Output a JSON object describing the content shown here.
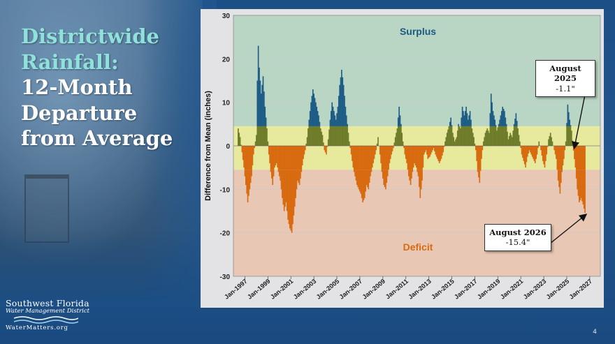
{
  "slide": {
    "title_line1": "Districtwide",
    "title_line2": "Rainfall:",
    "title_line3": "12-Month",
    "title_line4": "Departure",
    "title_line5": "from Average",
    "page_number": "4"
  },
  "logo": {
    "line1": "Southwest Florida",
    "line2": "Water Management District",
    "line3": "WaterMatters.org"
  },
  "callouts": [
    {
      "title": "August 2025",
      "value": "-1.1\""
    },
    {
      "title": "August 2026",
      "value": "-15.4\""
    }
  ],
  "colors": {
    "surplus_band": "#b9d5c4",
    "normal_band": "#e7ea9c",
    "deficit_band": "#e8c8b4",
    "surplus_bar": "#1d5d86",
    "normal_bar": "#6f7d2a",
    "deficit_bar": "#d86a10",
    "surplus_label": "#1c5a86",
    "deficit_label": "#d86a10"
  },
  "chart_data": {
    "type": "bar",
    "ylabel": "Difference from Mean (inches)",
    "ylim": [
      -30,
      30
    ],
    "yticks": [
      -30,
      -20,
      -10,
      0,
      10,
      20,
      30
    ],
    "normal_range": [
      -5.5,
      4.5
    ],
    "band_labels": {
      "surplus": "Surplus",
      "deficit": "Deficit"
    },
    "xlim": [
      "1996-01",
      "2027-12"
    ],
    "xticks": [
      "Jan-1997",
      "Jan-1999",
      "Jan-2001",
      "Jan-2003",
      "Jan-2005",
      "Jan-2007",
      "Jan-2009",
      "Jan-2011",
      "Jan-2013",
      "Jan-2015",
      "Jan-2017",
      "Jan-2019",
      "Jan-2021",
      "Jan-2023",
      "Jan-2025",
      "Jan-2027"
    ],
    "series": [
      {
        "points": [
          [
            "1996-06",
            4.0
          ],
          [
            "1996-08",
            2.0
          ],
          [
            "1996-10",
            -1.5
          ],
          [
            "1996-12",
            -5.0
          ],
          [
            "1997-02",
            -9.0
          ],
          [
            "1997-04",
            -13.0
          ],
          [
            "1997-06",
            -10.0
          ],
          [
            "1997-08",
            -7.0
          ],
          [
            "1997-10",
            -2.0
          ],
          [
            "1998-01",
            2.5
          ],
          [
            "1998-02",
            15.0
          ],
          [
            "1998-03",
            23.0
          ],
          [
            "1998-04",
            18.0
          ],
          [
            "1998-06",
            12.0
          ],
          [
            "1998-08",
            16.0
          ],
          [
            "1998-10",
            9.0
          ],
          [
            "1998-12",
            4.0
          ],
          [
            "1999-02",
            -2.0
          ],
          [
            "1999-04",
            -6.0
          ],
          [
            "1999-06",
            -9.0
          ],
          [
            "1999-08",
            -5.0
          ],
          [
            "1999-10",
            -4.0
          ],
          [
            "1999-12",
            -6.0
          ],
          [
            "2000-02",
            -8.0
          ],
          [
            "2000-04",
            -12.0
          ],
          [
            "2000-06",
            -15.0
          ],
          [
            "2000-08",
            -13.0
          ],
          [
            "2000-10",
            -17.0
          ],
          [
            "2000-12",
            -19.0
          ],
          [
            "2001-02",
            -20.0
          ],
          [
            "2001-04",
            -16.0
          ],
          [
            "2001-06",
            -12.0
          ],
          [
            "2001-08",
            -8.0
          ],
          [
            "2001-10",
            -9.0
          ],
          [
            "2001-12",
            -6.0
          ],
          [
            "2002-02",
            -3.0
          ],
          [
            "2002-04",
            -1.0
          ],
          [
            "2002-06",
            2.0
          ],
          [
            "2002-08",
            6.0
          ],
          [
            "2002-10",
            10.0
          ],
          [
            "2002-12",
            13.0
          ],
          [
            "2003-02",
            11.0
          ],
          [
            "2003-04",
            9.0
          ],
          [
            "2003-06",
            7.0
          ],
          [
            "2003-08",
            4.0
          ],
          [
            "2003-10",
            2.5
          ],
          [
            "2003-12",
            -1.0
          ],
          [
            "2004-02",
            -2.0
          ],
          [
            "2004-04",
            1.5
          ],
          [
            "2004-06",
            6.0
          ],
          [
            "2004-08",
            10.0
          ],
          [
            "2004-10",
            8.0
          ],
          [
            "2004-12",
            6.0
          ],
          [
            "2005-02",
            9.0
          ],
          [
            "2005-04",
            14.0
          ],
          [
            "2005-06",
            17.5
          ],
          [
            "2005-08",
            14.0
          ],
          [
            "2005-10",
            9.0
          ],
          [
            "2005-12",
            5.0
          ],
          [
            "2006-02",
            1.0
          ],
          [
            "2006-04",
            -2.0
          ],
          [
            "2006-06",
            -5.0
          ],
          [
            "2006-08",
            -7.0
          ],
          [
            "2006-10",
            -9.0
          ],
          [
            "2006-12",
            -10.0
          ],
          [
            "2007-02",
            -11.0
          ],
          [
            "2007-04",
            -13.0
          ],
          [
            "2007-06",
            -12.0
          ],
          [
            "2007-08",
            -9.0
          ],
          [
            "2007-10",
            -10.0
          ],
          [
            "2007-12",
            -7.0
          ],
          [
            "2008-02",
            -5.0
          ],
          [
            "2008-04",
            -3.0
          ],
          [
            "2008-06",
            -1.0
          ],
          [
            "2008-08",
            2.0
          ],
          [
            "2008-10",
            -2.0
          ],
          [
            "2008-12",
            -6.0
          ],
          [
            "2009-02",
            -9.0
          ],
          [
            "2009-04",
            -10.0
          ],
          [
            "2009-06",
            -7.0
          ],
          [
            "2009-08",
            -4.0
          ],
          [
            "2009-10",
            -2.0
          ],
          [
            "2009-12",
            -0.5
          ],
          [
            "2010-02",
            2.0
          ],
          [
            "2010-04",
            4.0
          ],
          [
            "2010-06",
            9.0
          ],
          [
            "2010-08",
            5.0
          ],
          [
            "2010-10",
            1.0
          ],
          [
            "2010-12",
            -2.0
          ],
          [
            "2011-02",
            -4.0
          ],
          [
            "2011-04",
            -7.0
          ],
          [
            "2011-06",
            -9.0
          ],
          [
            "2011-08",
            -6.0
          ],
          [
            "2011-10",
            -4.0
          ],
          [
            "2011-12",
            -5.0
          ],
          [
            "2012-02",
            -7.0
          ],
          [
            "2012-04",
            -12.0
          ],
          [
            "2012-06",
            -8.0
          ],
          [
            "2012-08",
            -2.0
          ],
          [
            "2012-10",
            -1.0
          ],
          [
            "2012-12",
            -3.0
          ],
          [
            "2013-02",
            -2.5
          ],
          [
            "2013-04",
            -1.5
          ],
          [
            "2013-06",
            -0.5
          ],
          [
            "2013-08",
            -2.0
          ],
          [
            "2013-10",
            -3.0
          ],
          [
            "2013-12",
            -4.0
          ],
          [
            "2014-02",
            -3.0
          ],
          [
            "2014-04",
            -1.5
          ],
          [
            "2014-06",
            1.0
          ],
          [
            "2014-08",
            3.0
          ],
          [
            "2014-10",
            4.5
          ],
          [
            "2014-12",
            6.5
          ],
          [
            "2015-02",
            3.0
          ],
          [
            "2015-04",
            1.0
          ],
          [
            "2015-06",
            2.0
          ],
          [
            "2015-08",
            5.0
          ],
          [
            "2015-10",
            4.0
          ],
          [
            "2015-12",
            9.0
          ],
          [
            "2016-02",
            7.0
          ],
          [
            "2016-04",
            9.0
          ],
          [
            "2016-06",
            6.0
          ],
          [
            "2016-08",
            8.0
          ],
          [
            "2016-10",
            4.0
          ],
          [
            "2016-12",
            2.0
          ],
          [
            "2017-02",
            -1.0
          ],
          [
            "2017-04",
            -6.0
          ],
          [
            "2017-06",
            -8.5
          ],
          [
            "2017-08",
            -3.0
          ],
          [
            "2017-10",
            1.0
          ],
          [
            "2017-12",
            3.0
          ],
          [
            "2018-02",
            4.0
          ],
          [
            "2018-04",
            3.0
          ],
          [
            "2018-06",
            12.0
          ],
          [
            "2018-08",
            8.0
          ],
          [
            "2018-10",
            6.0
          ],
          [
            "2018-12",
            3.5
          ],
          [
            "2019-02",
            5.0
          ],
          [
            "2019-04",
            7.0
          ],
          [
            "2019-06",
            9.0
          ],
          [
            "2019-08",
            8.0
          ],
          [
            "2019-10",
            5.0
          ],
          [
            "2019-12",
            1.5
          ],
          [
            "2020-02",
            3.0
          ],
          [
            "2020-04",
            2.0
          ],
          [
            "2020-06",
            5.0
          ],
          [
            "2020-08",
            7.5
          ],
          [
            "2020-10",
            4.0
          ],
          [
            "2020-12",
            1.0
          ],
          [
            "2021-02",
            -2.0
          ],
          [
            "2021-04",
            -3.5
          ],
          [
            "2021-06",
            -5.0
          ],
          [
            "2021-08",
            -2.5
          ],
          [
            "2021-10",
            -1.0
          ],
          [
            "2021-12",
            -2.0
          ],
          [
            "2022-02",
            -3.0
          ],
          [
            "2022-04",
            -4.0
          ],
          [
            "2022-06",
            -2.0
          ],
          [
            "2022-08",
            1.0
          ],
          [
            "2022-10",
            -1.0
          ],
          [
            "2022-12",
            -3.5
          ],
          [
            "2023-02",
            -5.0
          ],
          [
            "2023-04",
            -2.0
          ],
          [
            "2023-06",
            1.5
          ],
          [
            "2023-08",
            3.0
          ],
          [
            "2023-10",
            1.0
          ],
          [
            "2023-12",
            -1.0
          ],
          [
            "2024-02",
            -3.0
          ],
          [
            "2024-04",
            -8.0
          ],
          [
            "2024-06",
            -11.0
          ],
          [
            "2024-08",
            -6.0
          ],
          [
            "2024-10",
            -3.0
          ],
          [
            "2024-12",
            1.0
          ],
          [
            "2025-02",
            9.5
          ],
          [
            "2025-04",
            6.0
          ],
          [
            "2025-06",
            3.5
          ],
          [
            "2025-08",
            -1.1
          ],
          [
            "2025-10",
            -5.0
          ],
          [
            "2025-12",
            -10.0
          ],
          [
            "2026-02",
            -13.0
          ],
          [
            "2026-04",
            -12.0
          ],
          [
            "2026-06",
            -13.5
          ],
          [
            "2026-08",
            -15.4
          ]
        ]
      }
    ]
  }
}
